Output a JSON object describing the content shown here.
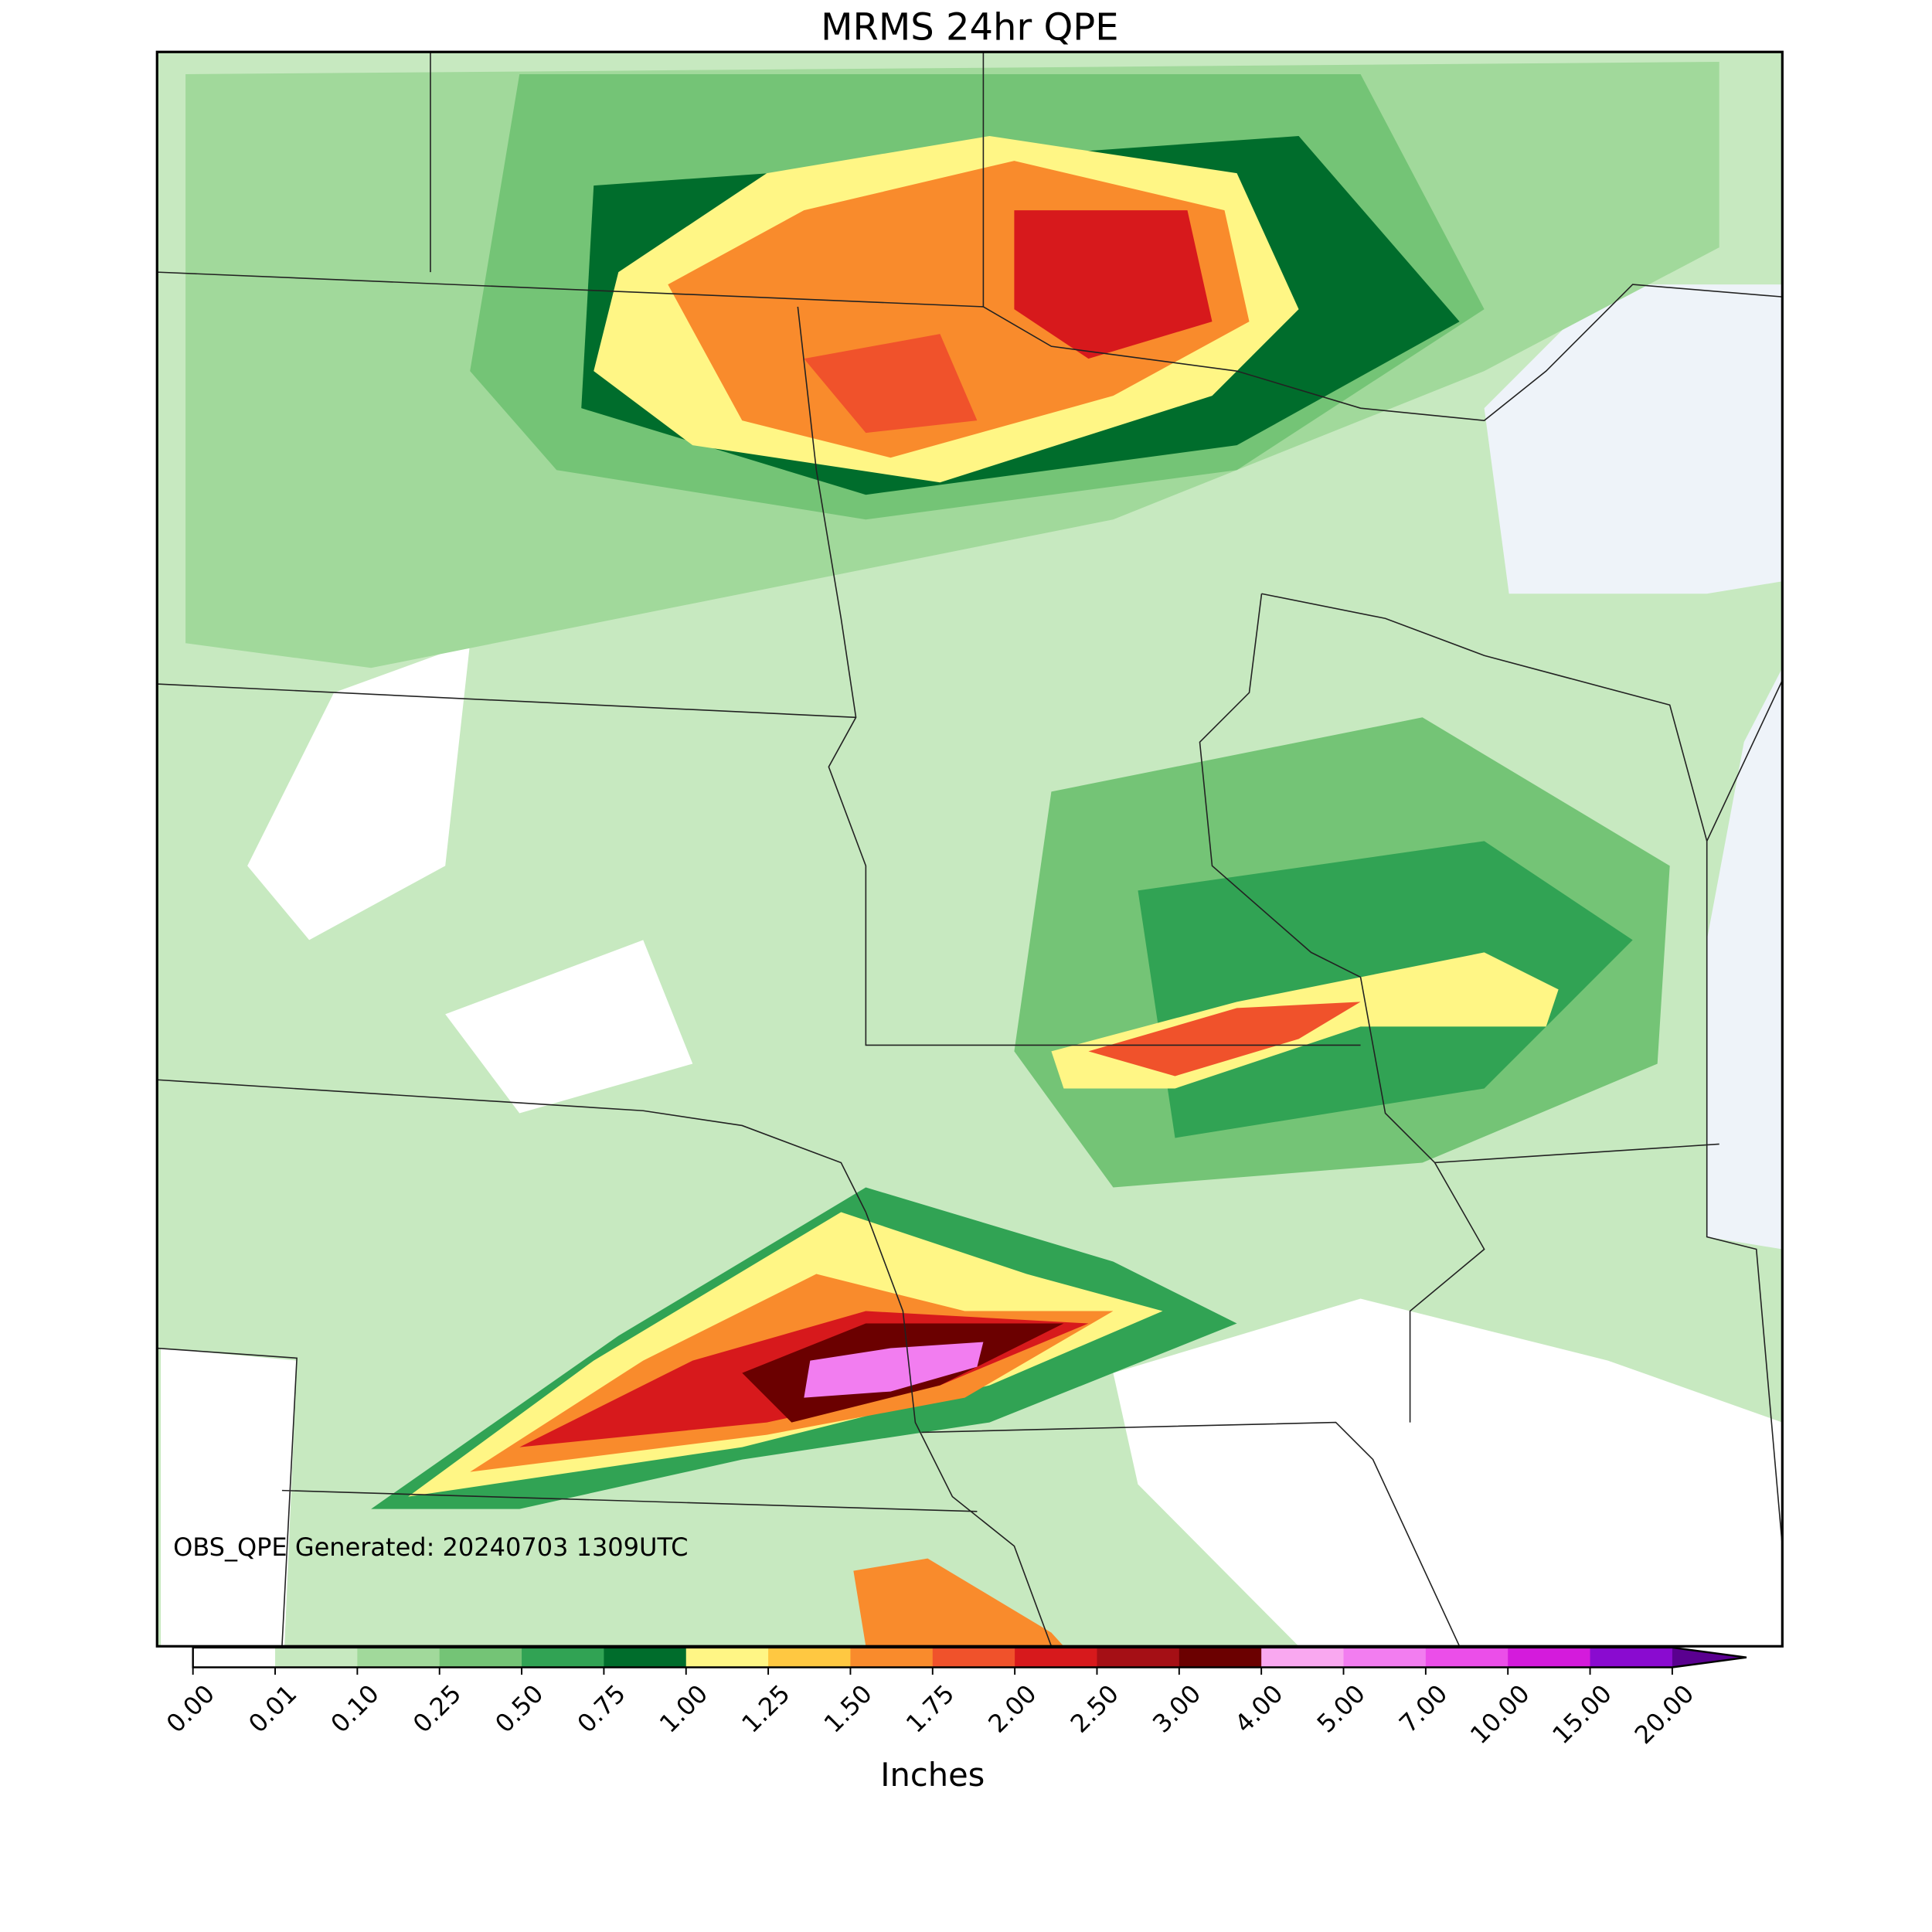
{
  "title": "MRMS 24hr QPE",
  "annotation": "OBS_QPE Generated: 20240703 1309UTC",
  "colorbar": {
    "label": "Inches",
    "ticks": [
      {
        "value": 0,
        "label": "0.00"
      },
      {
        "value": 0.01,
        "label": "0.01"
      },
      {
        "value": 0.1,
        "label": "0.10"
      },
      {
        "value": 0.25,
        "label": "0.25"
      },
      {
        "value": 0.5,
        "label": "0.50"
      },
      {
        "value": 0.75,
        "label": "0.75"
      },
      {
        "value": 1,
        "label": "1.00"
      },
      {
        "value": 1.25,
        "label": "1.25"
      },
      {
        "value": 1.5,
        "label": "1.50"
      },
      {
        "value": 1.75,
        "label": "1.75"
      },
      {
        "value": 2,
        "label": "2.00"
      },
      {
        "value": 2.5,
        "label": "2.50"
      },
      {
        "value": 3,
        "label": "3.00"
      },
      {
        "value": 4,
        "label": "4.00"
      },
      {
        "value": 5,
        "label": "5.00"
      },
      {
        "value": 7,
        "label": "7.00"
      },
      {
        "value": 10,
        "label": "10.00"
      },
      {
        "value": 15,
        "label": "15.00"
      },
      {
        "value": 20,
        "label": "20.00"
      }
    ],
    "colors": [
      "#ffffff",
      "#c7e9c0",
      "#a1d99b",
      "#74c476",
      "#31a354",
      "#006d2c",
      "#fff685",
      "#ffc841",
      "#f98b2c",
      "#f0522b",
      "#d7191c",
      "#a50f15",
      "#6b0000",
      "#f9a8f0",
      "#f27df0",
      "#eb4ee9",
      "#d41bdc",
      "#8a0bd0"
    ],
    "extend_color": "#5a0090"
  }
}
